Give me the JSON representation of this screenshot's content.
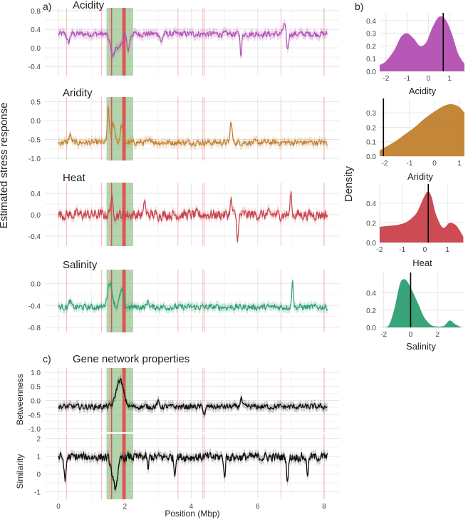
{
  "figure": {
    "y_axis_label": "Estimated stress response",
    "density_label": "Density",
    "x_axis_label": "Position (Mbp)",
    "panel_labels": [
      "a)",
      "b)",
      "c)"
    ],
    "network_title": "Gene network properties"
  },
  "colors": {
    "acidity": "#b34fb3",
    "aridity": "#c17f2d",
    "heat": "#c9414b",
    "salinity": "#2e9e72",
    "network": "#111111",
    "highlight_region": "#74b06a",
    "marker_line": "#e8474a"
  },
  "chart_data": [
    {
      "type": "line",
      "title": "Acidity",
      "xlabel": "",
      "ylabel": "Estimated stress response",
      "x_range": [
        0,
        8.1
      ],
      "ylim": [
        -0.55,
        0.8
      ],
      "yticks": [
        "0.8",
        "0.4",
        "0.0",
        "-0.4"
      ],
      "ytick_values": [
        0.8,
        0.4,
        0.0,
        -0.4
      ],
      "baseline": 0.3,
      "noise": 0.06,
      "features": [
        {
          "x": 1.65,
          "w": 0.12,
          "a": -0.45
        },
        {
          "x": 1.85,
          "w": 0.08,
          "a": -0.3
        },
        {
          "x": 2.1,
          "w": 0.06,
          "a": -0.35
        },
        {
          "x": 0.3,
          "w": 0.05,
          "a": -0.2
        },
        {
          "x": 5.5,
          "w": 0.03,
          "a": -0.5
        },
        {
          "x": 6.9,
          "w": 0.04,
          "a": -0.35
        },
        {
          "x": 3.1,
          "w": 0.04,
          "a": -0.2
        },
        {
          "x": 6.8,
          "w": 0.05,
          "a": 0.2
        }
      ],
      "highlight_mbp": [
        1.45,
        2.25
      ],
      "marker_lines_mbp": [
        0.25,
        1.3,
        1.6,
        1.95,
        2.0,
        3.6,
        4.35,
        4.4,
        6.7,
        8.0
      ]
    },
    {
      "type": "line",
      "title": "Aridity",
      "xlabel": "",
      "ylabel": "Estimated stress response",
      "x_range": [
        0,
        8.1
      ],
      "ylim": [
        -1.0,
        0.55
      ],
      "yticks": [
        "0.5",
        "0.0",
        "-0.5",
        "-1.0"
      ],
      "ytick_values": [
        0.5,
        0.0,
        -0.5,
        -1.0
      ],
      "baseline": -0.58,
      "noise": 0.07,
      "features": [
        {
          "x": 1.5,
          "w": 0.04,
          "a": 0.9
        },
        {
          "x": 1.65,
          "w": 0.08,
          "a": 0.45
        },
        {
          "x": 1.9,
          "w": 0.05,
          "a": 0.45
        },
        {
          "x": 0.35,
          "w": 0.05,
          "a": 0.2
        },
        {
          "x": 5.2,
          "w": 0.04,
          "a": 0.55
        },
        {
          "x": 2.8,
          "w": 0.05,
          "a": 0.1
        }
      ],
      "highlight_mbp": [
        1.45,
        2.25
      ],
      "marker_lines_mbp": [
        0.25,
        1.3,
        1.6,
        1.95,
        2.0,
        3.6,
        4.35,
        4.4,
        6.7,
        8.0
      ]
    },
    {
      "type": "line",
      "title": "Heat",
      "xlabel": "",
      "ylabel": "Estimated stress response",
      "x_range": [
        0,
        8.1
      ],
      "ylim": [
        -0.55,
        0.55
      ],
      "yticks": [
        "0.4",
        "0.0",
        "-0.4"
      ],
      "ytick_values": [
        0.4,
        0.0,
        -0.4
      ],
      "baseline": 0.0,
      "noise": 0.09,
      "features": [
        {
          "x": 1.6,
          "w": 0.05,
          "a": 0.3
        },
        {
          "x": 2.6,
          "w": 0.03,
          "a": 0.3
        },
        {
          "x": 5.4,
          "w": 0.04,
          "a": -0.45
        },
        {
          "x": 7.0,
          "w": 0.03,
          "a": 0.45
        },
        {
          "x": 5.2,
          "w": 0.04,
          "a": 0.25
        }
      ],
      "highlight_mbp": [
        1.45,
        2.25
      ],
      "marker_lines_mbp": [
        0.25,
        1.3,
        1.6,
        1.95,
        2.0,
        3.6,
        4.35,
        4.4,
        6.7,
        8.0
      ]
    },
    {
      "type": "line",
      "title": "Salinity",
      "xlabel": "",
      "ylabel": "Estimated stress response",
      "x_range": [
        0,
        8.1
      ],
      "ylim": [
        -0.85,
        0.2
      ],
      "yticks": [
        "0.0",
        "-0.4",
        "-0.8"
      ],
      "ytick_values": [
        0.0,
        -0.4,
        -0.8
      ],
      "baseline": -0.43,
      "noise": 0.05,
      "features": [
        {
          "x": 1.55,
          "w": 0.1,
          "a": 0.45
        },
        {
          "x": 1.9,
          "w": 0.08,
          "a": 0.3
        },
        {
          "x": 0.35,
          "w": 0.05,
          "a": 0.1
        },
        {
          "x": 7.05,
          "w": 0.03,
          "a": 0.55
        },
        {
          "x": 2.7,
          "w": 0.05,
          "a": 0.1
        }
      ],
      "highlight_mbp": [
        1.45,
        2.25
      ],
      "marker_lines_mbp": [
        0.25,
        1.3,
        1.6,
        1.95,
        2.0,
        3.6,
        4.35,
        4.4,
        6.7,
        8.0
      ]
    },
    {
      "type": "line",
      "title": "Betweenness",
      "xlabel": "",
      "ylabel": "Betweenness",
      "x_range": [
        0,
        8.1
      ],
      "ylim": [
        -1.05,
        1.05
      ],
      "yticks": [
        "1.0",
        "0.5",
        "0.0",
        "-0.5",
        "-1.0"
      ],
      "ytick_values": [
        1.0,
        0.5,
        0.0,
        -0.5,
        -1.0
      ],
      "baseline": -0.22,
      "noise": 0.09,
      "features": [
        {
          "x": 1.85,
          "w": 0.15,
          "a": 0.95
        },
        {
          "x": 3.0,
          "w": 0.05,
          "a": 0.15
        },
        {
          "x": 4.4,
          "w": 0.05,
          "a": -0.25
        },
        {
          "x": 5.5,
          "w": 0.04,
          "a": 0.3
        }
      ],
      "highlight_mbp": [
        1.45,
        2.25
      ],
      "marker_lines_mbp": [
        0.25,
        1.3,
        1.6,
        1.95,
        2.0,
        3.6,
        4.35,
        4.4,
        6.7,
        8.0
      ]
    },
    {
      "type": "line",
      "title": "Similarity",
      "xlabel": "Position (Mbp)",
      "ylabel": "Similarity",
      "x_range": [
        0,
        8.1
      ],
      "ylim": [
        -1.3,
        2.1
      ],
      "yticks": [
        "2",
        "1",
        "0",
        "-1"
      ],
      "ytick_values": [
        2,
        1,
        0,
        -1
      ],
      "xticks": [
        0,
        2,
        4,
        6,
        8
      ],
      "baseline": 0.95,
      "noise": 0.22,
      "features": [
        {
          "x": 1.7,
          "w": 0.12,
          "a": -1.7
        },
        {
          "x": 0.2,
          "w": 0.04,
          "a": -1.4
        },
        {
          "x": 3.5,
          "w": 0.03,
          "a": -1.0
        },
        {
          "x": 5.0,
          "w": 0.03,
          "a": -1.2
        },
        {
          "x": 6.9,
          "w": 0.04,
          "a": -1.3
        },
        {
          "x": 7.5,
          "w": 0.04,
          "a": -0.9
        },
        {
          "x": 2.7,
          "w": 0.03,
          "a": -0.7
        }
      ],
      "highlight_mbp": [
        1.45,
        2.25
      ],
      "marker_lines_mbp": [
        0.25,
        1.3,
        1.6,
        1.95,
        2.0,
        3.6,
        4.35,
        4.4,
        6.7,
        8.0
      ]
    },
    {
      "type": "area",
      "title": "Acidity density",
      "xlabel": "Acidity",
      "ylabel": "Density",
      "x": [
        -2.3,
        -2.0,
        -1.6,
        -1.3,
        -1.0,
        -0.7,
        -0.4,
        -0.1,
        0.2,
        0.5,
        0.8,
        1.1,
        1.4,
        1.7
      ],
      "y": [
        0.05,
        0.08,
        0.17,
        0.27,
        0.3,
        0.26,
        0.2,
        0.23,
        0.35,
        0.43,
        0.41,
        0.3,
        0.14,
        0.06
      ],
      "xlim": [
        -2.3,
        1.7
      ],
      "ylim": [
        0,
        0.45
      ],
      "xticks": [
        -2,
        -1,
        0,
        1
      ],
      "yticks": [
        0.0,
        0.1,
        0.2,
        0.3,
        0.4
      ],
      "yticklabels": [
        "0.0",
        "0.1",
        "0.2",
        "0.3",
        "0.4"
      ],
      "vline": 0.7
    },
    {
      "type": "area",
      "title": "Aridity density",
      "xlabel": "Aridity",
      "ylabel": "Density",
      "x": [
        -2.2,
        -2.0,
        -1.6,
        -1.2,
        -0.8,
        -0.4,
        0.0,
        0.4,
        0.7,
        1.0,
        1.2
      ],
      "y": [
        0.04,
        0.06,
        0.1,
        0.15,
        0.2,
        0.26,
        0.31,
        0.35,
        0.36,
        0.34,
        0.3
      ],
      "xlim": [
        -2.2,
        1.2
      ],
      "ylim": [
        0,
        0.39
      ],
      "xticks": [
        -2,
        -1,
        0,
        1
      ],
      "yticks": [
        0.0,
        0.1,
        0.2,
        0.3
      ],
      "yticklabels": [
        "0.0",
        "0.1",
        "0.2",
        "0.3"
      ],
      "vline": -2.05
    },
    {
      "type": "area",
      "title": "Heat density",
      "xlabel": "Heat",
      "ylabel": "Density",
      "x": [
        -2.0,
        -1.6,
        -1.2,
        -0.8,
        -0.4,
        -0.2,
        0.0,
        0.15,
        0.3,
        0.5,
        0.8,
        1.1,
        1.4,
        1.7
      ],
      "y": [
        0.16,
        0.17,
        0.18,
        0.21,
        0.29,
        0.38,
        0.48,
        0.52,
        0.46,
        0.28,
        0.15,
        0.2,
        0.17,
        0.06
      ],
      "xlim": [
        -2.0,
        1.75
      ],
      "ylim": [
        0,
        0.58
      ],
      "xticks": [
        -2,
        -1,
        0,
        1,
        2
      ],
      "yticks": [
        0.0,
        0.2,
        0.4
      ],
      "yticklabels": [
        "0.0",
        "0.2",
        "0.4"
      ],
      "vline": 0.15
    },
    {
      "type": "area",
      "title": "Salinity density",
      "xlabel": "Salinity",
      "ylabel": "Density",
      "x": [
        -2.0,
        -1.6,
        -1.2,
        -0.8,
        -0.5,
        -0.2,
        0.2,
        0.6,
        1.0,
        1.5,
        2.0,
        2.5,
        2.9,
        3.3,
        3.8
      ],
      "y": [
        0.0,
        0.03,
        0.22,
        0.5,
        0.56,
        0.52,
        0.4,
        0.26,
        0.12,
        0.03,
        0.01,
        0.02,
        0.08,
        0.04,
        0.0
      ],
      "xlim": [
        -2.3,
        4.0
      ],
      "ylim": [
        0,
        0.62
      ],
      "xticks": [
        -2,
        0,
        2
      ],
      "yticks": [
        0.0,
        0.2,
        0.4
      ],
      "yticklabels": [
        "0.0",
        "0.2",
        "0.4"
      ],
      "vline": 0.0
    }
  ]
}
